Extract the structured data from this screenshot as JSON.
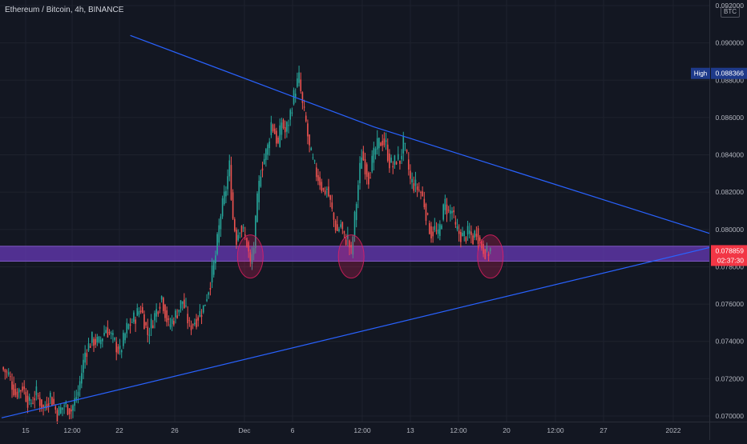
{
  "header": {
    "symbol": "Ethereum / Bitcoin, 4h, BINANCE",
    "unit": "BTC"
  },
  "colors": {
    "background": "#131722",
    "grid": "#1e222d",
    "up_candle": "#26a69a",
    "down_candle": "#ef5350",
    "trendline": "#2962ff",
    "support_zone": "#673ab7",
    "circle": "#e91e63",
    "axis_text": "#b2b5be"
  },
  "price_axis": {
    "ticks": [
      "0.070000",
      "0.072000",
      "0.074000",
      "0.076000",
      "0.078000",
      "0.080000",
      "0.082000",
      "0.084000",
      "0.086000",
      "0.088000",
      "0.090000",
      "0.092000"
    ]
  },
  "time_axis": {
    "ticks": [
      "15",
      "12:00",
      "22",
      "26",
      "Dec",
      "6",
      "12:00",
      "13",
      "12:00",
      "20",
      "12:00",
      "27",
      "2022"
    ]
  },
  "high_label": {
    "text": "High",
    "price": "0.088366"
  },
  "last_price": {
    "price": "0.078859",
    "countdown": "02:37:30"
  },
  "chart_data": {
    "type": "candlestick",
    "title": "Ethereum / Bitcoin, 4h, BINANCE",
    "ylabel": "BTC",
    "ylim": [
      0.0697,
      0.0923
    ],
    "grid": true,
    "x_ticks": [
      "15",
      "12:00",
      "22",
      "26",
      "Dec",
      "6",
      "12:00",
      "13",
      "12:00",
      "20",
      "12:00",
      "27",
      "2022"
    ],
    "y_ticks": [
      0.07,
      0.072,
      0.074,
      0.076,
      0.078,
      0.08,
      0.082,
      0.084,
      0.086,
      0.088,
      0.09,
      0.092
    ],
    "close_path": [
      [
        0,
        0.0726
      ],
      [
        4,
        0.0722
      ],
      [
        8,
        0.0712
      ],
      [
        12,
        0.0716
      ],
      [
        16,
        0.0706
      ],
      [
        20,
        0.0712
      ],
      [
        24,
        0.0704
      ],
      [
        28,
        0.0711
      ],
      [
        32,
        0.0701
      ],
      [
        36,
        0.0706
      ],
      [
        40,
        0.0703
      ],
      [
        44,
        0.0713
      ],
      [
        48,
        0.0734
      ],
      [
        52,
        0.0741
      ],
      [
        56,
        0.0739
      ],
      [
        60,
        0.0747
      ],
      [
        64,
        0.0741
      ],
      [
        68,
        0.0734
      ],
      [
        72,
        0.0747
      ],
      [
        76,
        0.0752
      ],
      [
        80,
        0.0758
      ],
      [
        84,
        0.0744
      ],
      [
        88,
        0.0754
      ],
      [
        92,
        0.0764
      ],
      [
        96,
        0.0748
      ],
      [
        100,
        0.0754
      ],
      [
        104,
        0.0762
      ],
      [
        108,
        0.0748
      ],
      [
        112,
        0.0752
      ],
      [
        116,
        0.0758
      ],
      [
        120,
        0.0772
      ],
      [
        123,
        0.0786
      ],
      [
        126,
        0.0808
      ],
      [
        129,
        0.0822
      ],
      [
        131,
        0.0834
      ],
      [
        133,
        0.0806
      ],
      [
        135,
        0.0795
      ],
      [
        137,
        0.0802
      ],
      [
        139,
        0.0798
      ],
      [
        141,
        0.0793
      ],
      [
        143,
        0.0781
      ],
      [
        145,
        0.0791
      ],
      [
        147,
        0.0815
      ],
      [
        149,
        0.0832
      ],
      [
        151,
        0.0838
      ],
      [
        153,
        0.0844
      ],
      [
        155,
        0.0857
      ],
      [
        157,
        0.0852
      ],
      [
        159,
        0.0845
      ],
      [
        161,
        0.0858
      ],
      [
        163,
        0.0852
      ],
      [
        165,
        0.0858
      ],
      [
        167,
        0.0867
      ],
      [
        169,
        0.0876
      ],
      [
        171,
        0.0881
      ],
      [
        173,
        0.0866
      ],
      [
        175,
        0.0857
      ],
      [
        177,
        0.0843
      ],
      [
        179,
        0.0836
      ],
      [
        181,
        0.083
      ],
      [
        183,
        0.0826
      ],
      [
        185,
        0.082
      ],
      [
        187,
        0.0822
      ],
      [
        189,
        0.0814
      ],
      [
        191,
        0.0805
      ],
      [
        193,
        0.0799
      ],
      [
        195,
        0.0803
      ],
      [
        197,
        0.0795
      ],
      [
        199,
        0.0795
      ],
      [
        201,
        0.0787
      ],
      [
        203,
        0.0806
      ],
      [
        205,
        0.0824
      ],
      [
        207,
        0.0841
      ],
      [
        209,
        0.0834
      ],
      [
        211,
        0.0828
      ],
      [
        213,
        0.0836
      ],
      [
        215,
        0.0843
      ],
      [
        217,
        0.0846
      ],
      [
        219,
        0.0848
      ],
      [
        221,
        0.0845
      ],
      [
        223,
        0.0836
      ],
      [
        225,
        0.0834
      ],
      [
        227,
        0.0838
      ],
      [
        229,
        0.0837
      ],
      [
        231,
        0.0846
      ],
      [
        233,
        0.0838
      ],
      [
        235,
        0.0826
      ],
      [
        237,
        0.0824
      ],
      [
        239,
        0.0822
      ],
      [
        241,
        0.082
      ],
      [
        243,
        0.0814
      ],
      [
        245,
        0.0804
      ],
      [
        247,
        0.0798
      ],
      [
        249,
        0.08
      ],
      [
        251,
        0.0796
      ],
      [
        253,
        0.0806
      ],
      [
        255,
        0.0814
      ],
      [
        257,
        0.0809
      ],
      [
        259,
        0.081
      ],
      [
        261,
        0.08
      ],
      [
        263,
        0.0798
      ],
      [
        265,
        0.0796
      ],
      [
        267,
        0.0797
      ],
      [
        269,
        0.0798
      ],
      [
        271,
        0.0795
      ],
      [
        273,
        0.08
      ],
      [
        275,
        0.0793
      ],
      [
        277,
        0.079
      ],
      [
        279,
        0.0787
      ],
      [
        281,
        0.0789
      ]
    ],
    "trendlines": [
      {
        "name": "",
        "points": [
          [
            74,
            0.0904
          ],
          [
            214,
            0.0855
          ],
          [
            410,
            0.0797
          ]
        ]
      },
      {
        "name": "",
        "points": [
          [
            0,
            0.0699
          ],
          [
            410,
            0.0791
          ]
        ]
      }
    ],
    "support_zone": [
      0.0783,
      0.0791
    ],
    "highlighted_bars": [
      143,
      201,
      281
    ],
    "high": 0.088366,
    "last_close": 0.078859,
    "countdown": "02:37:30"
  }
}
